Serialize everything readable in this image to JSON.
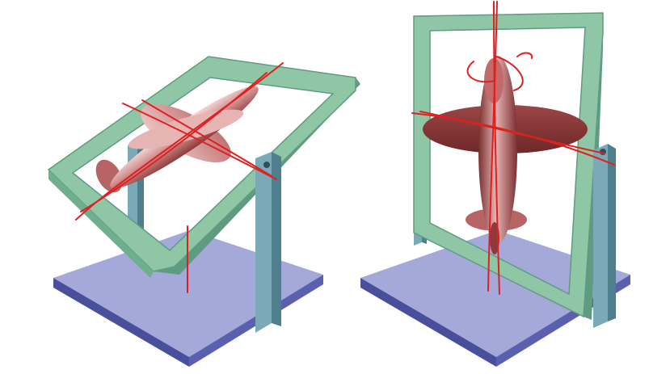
{
  "figure": {
    "panels": [
      {
        "id": "tilted-gimbal",
        "parts": [
          "base-plate",
          "support-post",
          "tilted-frame",
          "airplane",
          "annotation-strokes"
        ]
      },
      {
        "id": "upright-gimbal",
        "parts": [
          "base-plate",
          "support-post",
          "upright-frame",
          "airplane",
          "annotation-strokes"
        ]
      }
    ]
  },
  "colors": {
    "background": "#ffffff",
    "base_top": "#a5a9da",
    "base_side": "#4a4f9c",
    "post": "#7aaab8",
    "post_dark": "#4f7f8d",
    "frame": "#8fc7a6",
    "frame_dark": "#5f9b80",
    "airplane_light": "#f3d2d2",
    "airplane_mid": "#c46a6a",
    "airplane_dark": "#7a2e2e",
    "annotation": "#e02020"
  }
}
